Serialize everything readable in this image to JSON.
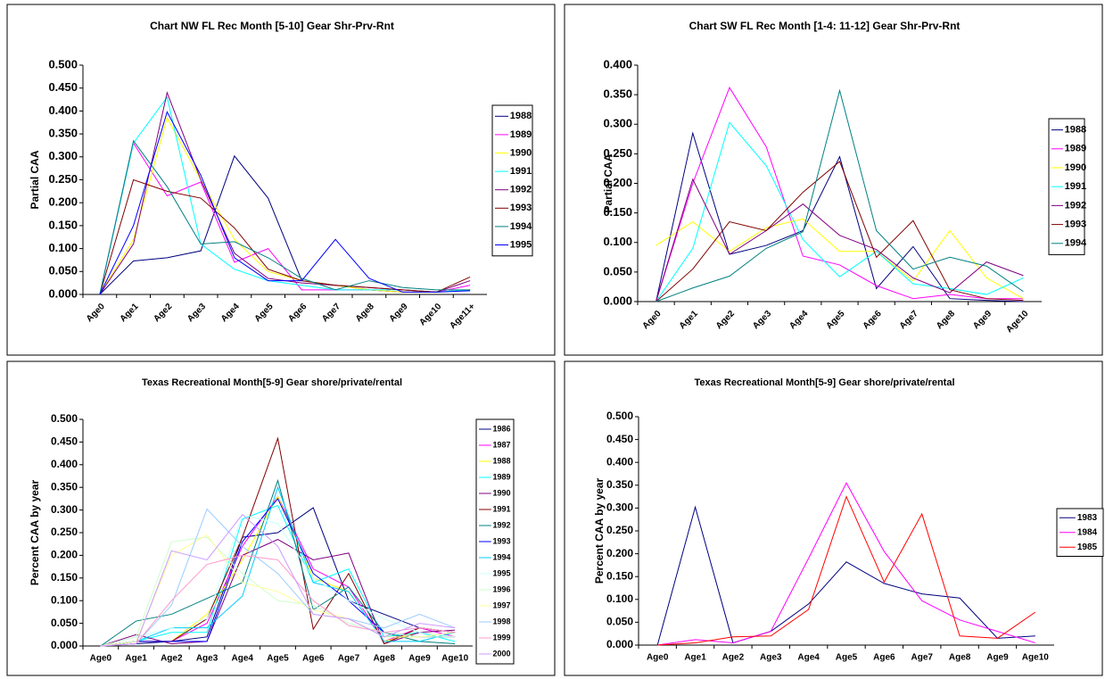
{
  "chart_data": [
    {
      "type": "line",
      "title": "Chart NW FL Rec Month [5-10] Gear Shr-Prv-Rnt",
      "y_label": "Partial CAA",
      "legend": "right",
      "x_labels_rotated": true,
      "categories": [
        "Age0",
        "Age1",
        "Age2",
        "Age3",
        "Age4",
        "Age5",
        "Age6",
        "Age7",
        "Age8",
        "Age9",
        "Age10",
        "Age11+"
      ],
      "ylim": [
        0,
        0.5
      ],
      "yticks": [
        {
          "value": 0,
          "label": "0.000"
        },
        {
          "value": 0.05,
          "label": "0.050"
        },
        {
          "value": 0.1,
          "label": "0.100"
        },
        {
          "value": 0.15,
          "label": "0.150"
        },
        {
          "value": 0.2,
          "label": "0.200"
        },
        {
          "value": 0.25,
          "label": "0.250"
        },
        {
          "value": 0.3,
          "label": "0.300"
        },
        {
          "value": 0.35,
          "label": "0.350"
        },
        {
          "value": 0.4,
          "label": "0.400"
        },
        {
          "value": 0.45,
          "label": "0.450"
        },
        {
          "value": 0.5,
          "label": "0.500"
        }
      ],
      "series": [
        {
          "name": "1988",
          "color": "#000080",
          "values": [
            0,
            0.073,
            0.08,
            0.095,
            0.302,
            0.21,
            0.03,
            0.02,
            0.01,
            0.005,
            0.005,
            0.01
          ]
        },
        {
          "name": "1989",
          "color": "#ff00ff",
          "values": [
            0,
            0.33,
            0.215,
            0.245,
            0.07,
            0.1,
            0.01,
            0.01,
            0.01,
            0.005,
            0.005,
            0.02
          ]
        },
        {
          "name": "1990",
          "color": "#ffff00",
          "values": [
            0,
            0.12,
            0.385,
            0.25,
            0.12,
            0.05,
            0.03,
            0.02,
            0.01,
            0.005,
            0.005,
            0.01
          ]
        },
        {
          "name": "1991",
          "color": "#00ffff",
          "values": [
            0,
            0.33,
            0.43,
            0.11,
            0.055,
            0.03,
            0.02,
            0.01,
            0.01,
            0.01,
            0.005,
            0.01
          ]
        },
        {
          "name": "1992",
          "color": "#800080",
          "values": [
            0,
            0.11,
            0.44,
            0.25,
            0.09,
            0.035,
            0.025,
            0.02,
            0.015,
            0.01,
            0.005,
            0.03
          ]
        },
        {
          "name": "1993",
          "color": "#800000",
          "values": [
            0,
            0.25,
            0.225,
            0.21,
            0.145,
            0.055,
            0.03,
            0.02,
            0.015,
            0.01,
            0.005,
            0.038
          ]
        },
        {
          "name": "1994",
          "color": "#008080",
          "values": [
            0,
            0.335,
            0.235,
            0.11,
            0.115,
            0.08,
            0.035,
            0.01,
            0.03,
            0.015,
            0.01,
            0.01
          ]
        },
        {
          "name": "1995",
          "color": "#0000ff",
          "values": [
            0,
            0.15,
            0.398,
            0.26,
            0.08,
            0.03,
            0.03,
            0.12,
            0.035,
            0.005,
            0.005,
            0.008
          ]
        }
      ]
    },
    {
      "type": "line",
      "title": "Chart SW FL Rec Month [1-4: 11-12] Gear Shr-Prv-Rnt",
      "y_label": "Partial CAA",
      "legend": "right",
      "x_labels_rotated": true,
      "categories": [
        "Age0",
        "Age1",
        "Age2",
        "Age3",
        "Age4",
        "Age5",
        "Age6",
        "Age7",
        "Age8",
        "Age9",
        "Age10"
      ],
      "ylim": [
        0,
        0.4
      ],
      "yticks": [
        {
          "value": 0,
          "label": "0.000"
        },
        {
          "value": 0.05,
          "label": "0.050"
        },
        {
          "value": 0.1,
          "label": "0.100"
        },
        {
          "value": 0.15,
          "label": "0.150"
        },
        {
          "value": 0.2,
          "label": "0.200"
        },
        {
          "value": 0.25,
          "label": "0.250"
        },
        {
          "value": 0.3,
          "label": "0.300"
        },
        {
          "value": 0.35,
          "label": "0.350"
        },
        {
          "value": 0.4,
          "label": "0.400"
        }
      ],
      "series": [
        {
          "name": "1988",
          "color": "#000080",
          "values": [
            0,
            0.285,
            0.08,
            0.095,
            0.12,
            0.245,
            0.022,
            0.093,
            0.005,
            0.002,
            0
          ]
        },
        {
          "name": "1989",
          "color": "#ff00ff",
          "values": [
            0,
            0.2,
            0.362,
            0.262,
            0.077,
            0.062,
            0.027,
            0.005,
            0.012,
            0.005,
            0.005
          ]
        },
        {
          "name": "1990",
          "color": "#ffff00",
          "values": [
            0.095,
            0.135,
            0.085,
            0.125,
            0.14,
            0.085,
            0.085,
            0.035,
            0.12,
            0.04,
            0.005
          ]
        },
        {
          "name": "1991",
          "color": "#00ffff",
          "values": [
            0,
            0.09,
            0.303,
            0.23,
            0.105,
            0.042,
            0.085,
            0.03,
            0.022,
            0.012,
            0.04
          ]
        },
        {
          "name": "1992",
          "color": "#800080",
          "values": [
            0,
            0.207,
            0.08,
            0.12,
            0.165,
            0.112,
            0.088,
            0.04,
            0.015,
            0.067,
            0.044
          ]
        },
        {
          "name": "1993",
          "color": "#800000",
          "values": [
            0,
            0.055,
            0.135,
            0.12,
            0.185,
            0.237,
            0.075,
            0.137,
            0.02,
            0.005,
            0.002
          ]
        },
        {
          "name": "1994",
          "color": "#008080",
          "values": [
            0,
            0.023,
            0.043,
            0.09,
            0.118,
            0.357,
            0.12,
            0.055,
            0.075,
            0.06,
            0.017
          ]
        }
      ]
    },
    {
      "type": "line",
      "title": "Texas Recreational Month[5-9] Gear shore/private/rental",
      "y_label": "Percent CAA by year",
      "legend": "right",
      "x_labels_rotated": false,
      "categories": [
        "Age0",
        "Age1",
        "Age2",
        "Age3",
        "Age4",
        "Age5",
        "Age6",
        "Age7",
        "Age8",
        "Age9",
        "Age10"
      ],
      "ylim": [
        0,
        0.5
      ],
      "yticks": [
        {
          "value": 0,
          "label": "0.000"
        },
        {
          "value": 0.05,
          "label": "0.050"
        },
        {
          "value": 0.1,
          "label": "0.100"
        },
        {
          "value": 0.15,
          "label": "0.150"
        },
        {
          "value": 0.2,
          "label": "0.200"
        },
        {
          "value": 0.25,
          "label": "0.250"
        },
        {
          "value": 0.3,
          "label": "0.300"
        },
        {
          "value": 0.35,
          "label": "0.350"
        },
        {
          "value": 0.4,
          "label": "0.400"
        },
        {
          "value": 0.45,
          "label": "0.450"
        },
        {
          "value": 0.5,
          "label": "0.500"
        }
      ],
      "series": [
        {
          "name": "1986",
          "color": "#000080",
          "values": [
            0,
            0.005,
            0.01,
            0.02,
            0.24,
            0.25,
            0.305,
            0.1,
            0.07,
            0.04,
            0.03
          ]
        },
        {
          "name": "1987",
          "color": "#ff00ff",
          "values": [
            0,
            0.01,
            0.01,
            0.05,
            0.22,
            0.33,
            0.17,
            0.13,
            0.01,
            0.04,
            0.02
          ]
        },
        {
          "name": "1988",
          "color": "#ffff00",
          "values": [
            0,
            0.01,
            0.01,
            0.07,
            0.19,
            0.33,
            0.15,
            0.12,
            0.01,
            0.03,
            0.02
          ]
        },
        {
          "name": "1989",
          "color": "#00ffff",
          "values": [
            0,
            0.01,
            0.03,
            0.03,
            0.28,
            0.31,
            0.14,
            0.17,
            0.02,
            0.03,
            0.01
          ]
        },
        {
          "name": "1990",
          "color": "#800080",
          "values": [
            0,
            0.025,
            0.005,
            0.01,
            0.2,
            0.235,
            0.19,
            0.205,
            0.005,
            0.03,
            0.035
          ]
        },
        {
          "name": "1991",
          "color": "#800000",
          "values": [
            0,
            0.01,
            0.01,
            0.06,
            0.24,
            0.458,
            0.037,
            0.16,
            0.005,
            0.04,
            0.03
          ]
        },
        {
          "name": "1992",
          "color": "#008080",
          "values": [
            0,
            0.055,
            0.07,
            0.105,
            0.14,
            0.365,
            0.08,
            0.13,
            0.03,
            0.01,
            0.005
          ]
        },
        {
          "name": "1993",
          "color": "#0000ff",
          "values": [
            0,
            0.01,
            0.01,
            0.01,
            0.23,
            0.325,
            0.16,
            0.1,
            0.03,
            0.02,
            0.02
          ]
        },
        {
          "name": "1994",
          "color": "#00ccff",
          "values": [
            0,
            0.01,
            0.04,
            0.04,
            0.11,
            0.35,
            0.14,
            0.12,
            0.01,
            0.01,
            0.03
          ]
        },
        {
          "name": "1995",
          "color": "#ccffff",
          "values": [
            0,
            0.02,
            0.04,
            0.06,
            0.29,
            0.27,
            0.15,
            0.1,
            0.06,
            0.03,
            0.02
          ]
        },
        {
          "name": "1996",
          "color": "#ccffcc",
          "values": [
            0,
            0.02,
            0.23,
            0.24,
            0.16,
            0.1,
            0.09,
            0.05,
            0.03,
            0.02,
            0.02
          ]
        },
        {
          "name": "1997",
          "color": "#ffff99",
          "values": [
            0,
            0.01,
            0.2,
            0.245,
            0.14,
            0.12,
            0.08,
            0.06,
            0.02,
            0.02,
            0.03
          ]
        },
        {
          "name": "1998",
          "color": "#99ccff",
          "values": [
            0,
            0.005,
            0.09,
            0.302,
            0.22,
            0.16,
            0.07,
            0.06,
            0.04,
            0.07,
            0.04
          ]
        },
        {
          "name": "1999",
          "color": "#ff99cc",
          "values": [
            0,
            0.005,
            0.1,
            0.18,
            0.2,
            0.19,
            0.1,
            0.045,
            0.03,
            0.04,
            0.03
          ]
        },
        {
          "name": "2000",
          "color": "#cc99ff",
          "values": [
            0,
            0.005,
            0.21,
            0.19,
            0.29,
            0.22,
            0.07,
            0.06,
            0.02,
            0.05,
            0.04
          ]
        }
      ]
    },
    {
      "type": "line",
      "title": "Texas Recreational Month[5-9] Gear shore/private/rental",
      "y_label": "Percent CAA by year",
      "legend": "right",
      "x_labels_rotated": false,
      "categories": [
        "Age0",
        "Age1",
        "Age2",
        "Age3",
        "Age4",
        "Age5",
        "Age6",
        "Age7",
        "Age8",
        "Age9",
        "Age10"
      ],
      "ylim": [
        0,
        0.5
      ],
      "yticks": [
        {
          "value": 0,
          "label": "0.000"
        },
        {
          "value": 0.05,
          "label": "0.050"
        },
        {
          "value": 0.1,
          "label": "0.100"
        },
        {
          "value": 0.15,
          "label": "0.150"
        },
        {
          "value": 0.2,
          "label": "0.200"
        },
        {
          "value": 0.25,
          "label": "0.250"
        },
        {
          "value": 0.3,
          "label": "0.300"
        },
        {
          "value": 0.35,
          "label": "0.350"
        },
        {
          "value": 0.4,
          "label": "0.400"
        },
        {
          "value": 0.45,
          "label": "0.450"
        },
        {
          "value": 0.5,
          "label": "0.500"
        }
      ],
      "series": [
        {
          "name": "1983",
          "color": "#000080",
          "values": [
            0,
            0.302,
            0.005,
            0.03,
            0.09,
            0.182,
            0.135,
            0.112,
            0.103,
            0.015,
            0.02
          ]
        },
        {
          "name": "1984",
          "color": "#ff00ff",
          "values": [
            0,
            0.012,
            0.005,
            0.03,
            0.19,
            0.355,
            0.205,
            0.097,
            0.055,
            0.03,
            0.005
          ]
        },
        {
          "name": "1985",
          "color": "#ff0000",
          "values": [
            0,
            0.005,
            0.018,
            0.02,
            0.078,
            0.325,
            0.138,
            0.287,
            0.02,
            0.015,
            0.072
          ]
        }
      ]
    }
  ]
}
